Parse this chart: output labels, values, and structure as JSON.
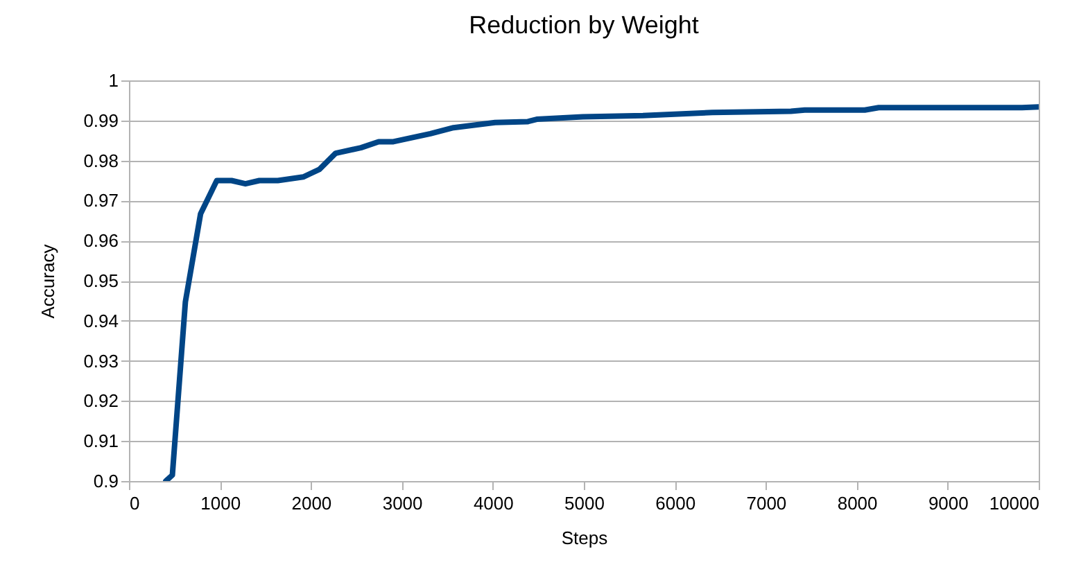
{
  "chart_data": {
    "type": "line",
    "title": "Reduction by Weight",
    "xlabel": "Steps",
    "ylabel": "Accuracy",
    "x": [
      405,
      477,
      620,
      787,
      965,
      1128,
      1280,
      1433,
      1636,
      1915,
      2093,
      2271,
      2550,
      2744,
      2906,
      3313,
      3567,
      4024,
      4380,
      4482,
      4989,
      5650,
      6412,
      7276,
      7428,
      8088,
      8241,
      9817,
      10000
    ],
    "series": [
      {
        "color": "#004586",
        "values": [
          0.9,
          0.9015,
          0.9447,
          0.9667,
          0.975,
          0.975,
          0.9742,
          0.975,
          0.975,
          0.9759,
          0.9778,
          0.9818,
          0.9832,
          0.9847,
          0.9847,
          0.9867,
          0.9882,
          0.9895,
          0.9897,
          0.9903,
          0.9909,
          0.9912,
          0.992,
          0.9923,
          0.9926,
          0.9926,
          0.9932,
          0.9932,
          0.9934
        ]
      }
    ],
    "xlim": [
      0,
      10000
    ],
    "xticks": [
      0,
      1000,
      2000,
      3000,
      4000,
      5000,
      6000,
      7000,
      8000,
      9000,
      10000
    ],
    "ylim": [
      0.9,
      1
    ],
    "yticks": [
      0.9,
      0.91,
      0.92,
      0.93,
      0.94,
      0.95,
      0.96,
      0.97,
      0.98,
      0.99,
      1
    ],
    "grid": "y",
    "line_style": "solid",
    "marker": "none"
  }
}
